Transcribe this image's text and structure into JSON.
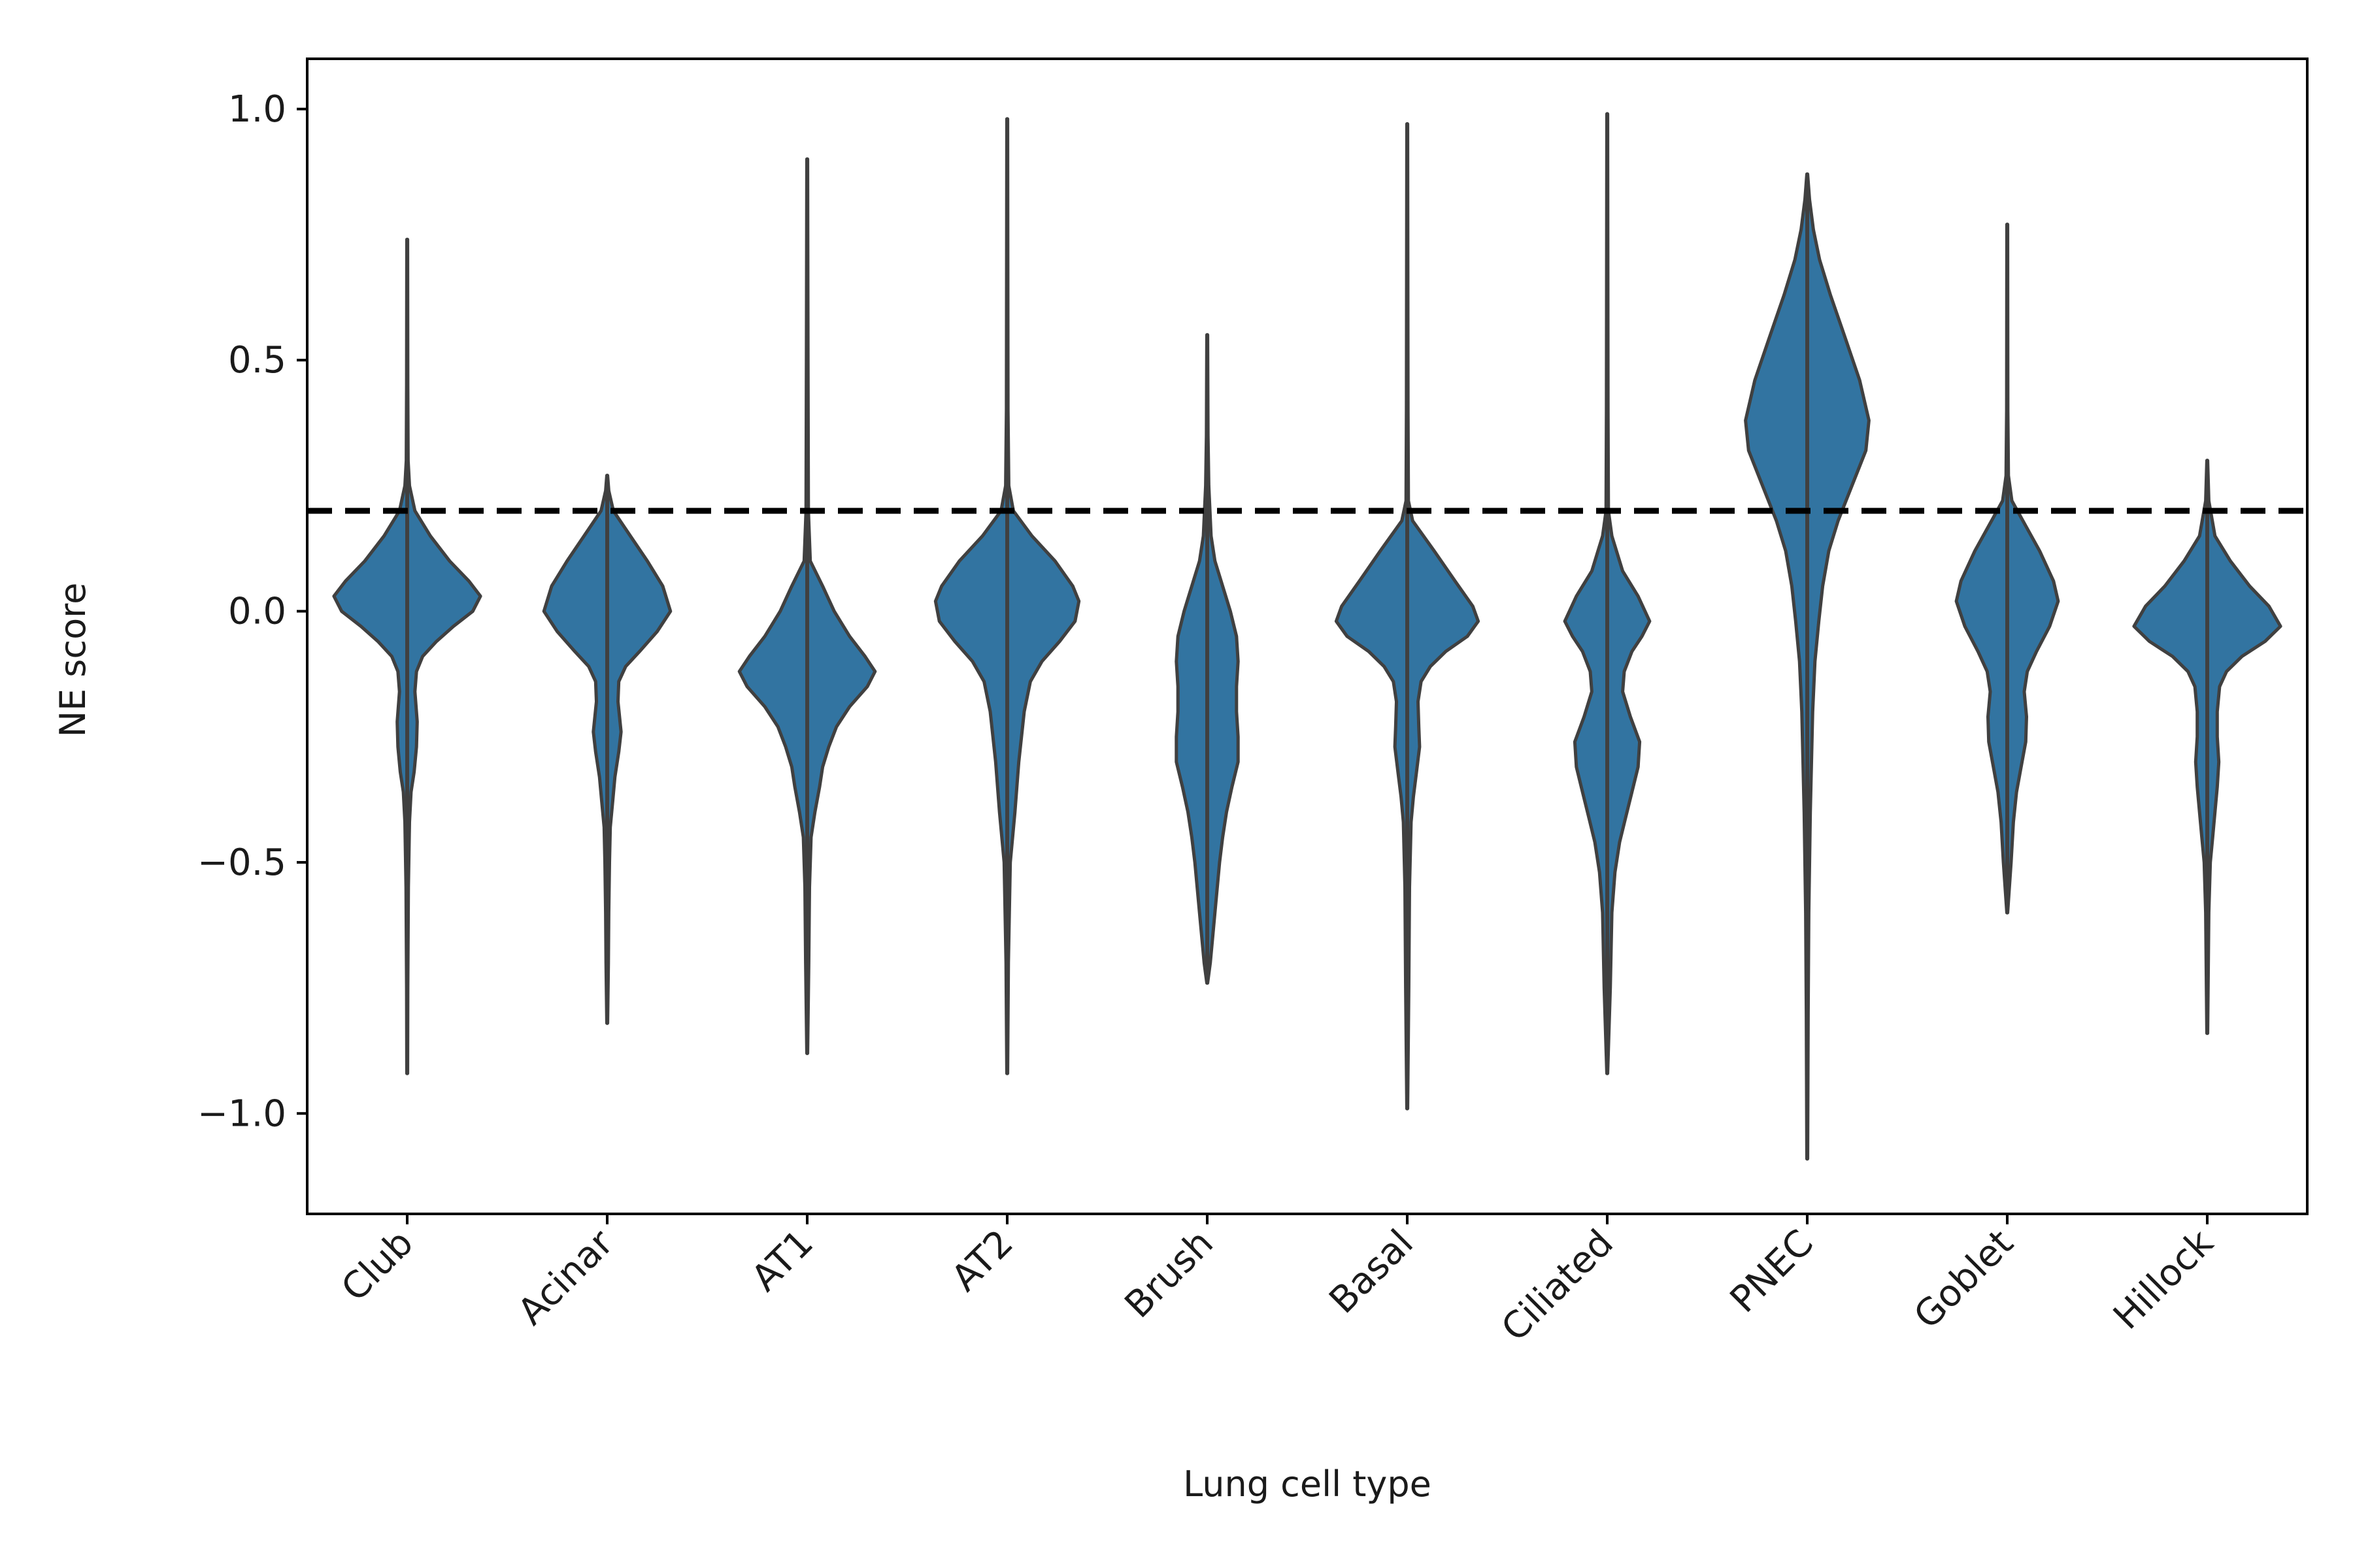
{
  "chart_data": {
    "type": "violin",
    "xlabel": "Lung cell type",
    "ylabel": "NE score",
    "ylim": [
      -1.2,
      1.1
    ],
    "yticks": [
      1.0,
      0.5,
      0.0,
      -0.5,
      -1.0
    ],
    "ytick_labels": [
      "1.0",
      "0.5",
      "0.0",
      "−0.5",
      "−1.0"
    ],
    "threshold": 0.2,
    "fill_color": "#3274a1",
    "edge_color": "#404040",
    "threshold_color": "#000000",
    "categories": [
      "Club",
      "Acinar",
      "AT1",
      "AT2",
      "Brush",
      "Basal",
      "Ciliated",
      "PNEC",
      "Goblet",
      "Hillock"
    ],
    "violins": [
      {
        "name": "Club",
        "min": -0.92,
        "max": 0.74,
        "profile": [
          [
            0.74,
            0.005
          ],
          [
            0.45,
            0.008
          ],
          [
            0.3,
            0.012
          ],
          [
            0.25,
            0.03
          ],
          [
            0.2,
            0.1
          ],
          [
            0.15,
            0.3
          ],
          [
            0.1,
            0.55
          ],
          [
            0.06,
            0.8
          ],
          [
            0.03,
            0.95
          ],
          [
            0.0,
            0.85
          ],
          [
            -0.03,
            0.6
          ],
          [
            -0.06,
            0.38
          ],
          [
            -0.09,
            0.2
          ],
          [
            -0.12,
            0.12
          ],
          [
            -0.16,
            0.1
          ],
          [
            -0.22,
            0.13
          ],
          [
            -0.27,
            0.12
          ],
          [
            -0.32,
            0.09
          ],
          [
            -0.36,
            0.05
          ],
          [
            -0.42,
            0.03
          ],
          [
            -0.55,
            0.015
          ],
          [
            -0.75,
            0.008
          ],
          [
            -0.92,
            0.005
          ]
        ]
      },
      {
        "name": "Acinar",
        "min": -0.82,
        "max": 0.27,
        "profile": [
          [
            0.27,
            0.005
          ],
          [
            0.24,
            0.02
          ],
          [
            0.2,
            0.08
          ],
          [
            0.15,
            0.3
          ],
          [
            0.1,
            0.52
          ],
          [
            0.05,
            0.72
          ],
          [
            0.0,
            0.82
          ],
          [
            -0.04,
            0.65
          ],
          [
            -0.08,
            0.42
          ],
          [
            -0.11,
            0.24
          ],
          [
            -0.14,
            0.15
          ],
          [
            -0.18,
            0.14
          ],
          [
            -0.24,
            0.18
          ],
          [
            -0.28,
            0.15
          ],
          [
            -0.33,
            0.1
          ],
          [
            -0.38,
            0.07
          ],
          [
            -0.43,
            0.04
          ],
          [
            -0.5,
            0.03
          ],
          [
            -0.6,
            0.02
          ],
          [
            -0.7,
            0.015
          ],
          [
            -0.82,
            0.005
          ]
        ]
      },
      {
        "name": "AT1",
        "min": -0.88,
        "max": 0.9,
        "profile": [
          [
            0.9,
            0.005
          ],
          [
            0.5,
            0.01
          ],
          [
            0.2,
            0.015
          ],
          [
            0.1,
            0.04
          ],
          [
            0.05,
            0.2
          ],
          [
            0.0,
            0.35
          ],
          [
            -0.05,
            0.55
          ],
          [
            -0.09,
            0.75
          ],
          [
            -0.12,
            0.88
          ],
          [
            -0.15,
            0.78
          ],
          [
            -0.19,
            0.55
          ],
          [
            -0.23,
            0.38
          ],
          [
            -0.27,
            0.28
          ],
          [
            -0.31,
            0.2
          ],
          [
            -0.35,
            0.16
          ],
          [
            -0.4,
            0.1
          ],
          [
            -0.45,
            0.05
          ],
          [
            -0.55,
            0.03
          ],
          [
            -0.7,
            0.02
          ],
          [
            -0.88,
            0.005
          ]
        ]
      },
      {
        "name": "AT2",
        "min": -0.92,
        "max": 0.98,
        "profile": [
          [
            0.98,
            0.005
          ],
          [
            0.4,
            0.01
          ],
          [
            0.25,
            0.02
          ],
          [
            0.2,
            0.08
          ],
          [
            0.15,
            0.32
          ],
          [
            0.1,
            0.62
          ],
          [
            0.05,
            0.85
          ],
          [
            0.02,
            0.93
          ],
          [
            -0.02,
            0.88
          ],
          [
            -0.06,
            0.68
          ],
          [
            -0.1,
            0.45
          ],
          [
            -0.14,
            0.3
          ],
          [
            -0.2,
            0.22
          ],
          [
            -0.3,
            0.15
          ],
          [
            -0.4,
            0.1
          ],
          [
            -0.5,
            0.04
          ],
          [
            -0.7,
            0.015
          ],
          [
            -0.92,
            0.005
          ]
        ]
      },
      {
        "name": "Brush",
        "min": -0.74,
        "max": 0.55,
        "profile": [
          [
            0.55,
            0.005
          ],
          [
            0.35,
            0.01
          ],
          [
            0.25,
            0.02
          ],
          [
            0.15,
            0.05
          ],
          [
            0.1,
            0.1
          ],
          [
            0.05,
            0.2
          ],
          [
            0.0,
            0.3
          ],
          [
            -0.05,
            0.38
          ],
          [
            -0.1,
            0.4
          ],
          [
            -0.15,
            0.38
          ],
          [
            -0.2,
            0.38
          ],
          [
            -0.25,
            0.4
          ],
          [
            -0.3,
            0.4
          ],
          [
            -0.35,
            0.32
          ],
          [
            -0.4,
            0.25
          ],
          [
            -0.45,
            0.2
          ],
          [
            -0.5,
            0.16
          ],
          [
            -0.6,
            0.1
          ],
          [
            -0.7,
            0.04
          ],
          [
            -0.74,
            0.005
          ]
        ]
      },
      {
        "name": "Basal",
        "min": -0.99,
        "max": 0.97,
        "profile": [
          [
            0.97,
            0.005
          ],
          [
            0.4,
            0.01
          ],
          [
            0.22,
            0.015
          ],
          [
            0.18,
            0.07
          ],
          [
            0.12,
            0.35
          ],
          [
            0.06,
            0.62
          ],
          [
            0.01,
            0.85
          ],
          [
            -0.02,
            0.92
          ],
          [
            -0.05,
            0.78
          ],
          [
            -0.08,
            0.5
          ],
          [
            -0.11,
            0.3
          ],
          [
            -0.14,
            0.18
          ],
          [
            -0.18,
            0.14
          ],
          [
            -0.23,
            0.15
          ],
          [
            -0.27,
            0.16
          ],
          [
            -0.32,
            0.12
          ],
          [
            -0.37,
            0.08
          ],
          [
            -0.42,
            0.05
          ],
          [
            -0.55,
            0.03
          ],
          [
            -0.75,
            0.02
          ],
          [
            -0.99,
            0.005
          ]
        ]
      },
      {
        "name": "Ciliated",
        "min": -0.92,
        "max": 0.99,
        "profile": [
          [
            0.99,
            0.005
          ],
          [
            0.4,
            0.01
          ],
          [
            0.2,
            0.015
          ],
          [
            0.15,
            0.06
          ],
          [
            0.08,
            0.2
          ],
          [
            0.03,
            0.4
          ],
          [
            -0.02,
            0.55
          ],
          [
            -0.05,
            0.45
          ],
          [
            -0.08,
            0.32
          ],
          [
            -0.12,
            0.22
          ],
          [
            -0.16,
            0.2
          ],
          [
            -0.21,
            0.3
          ],
          [
            -0.26,
            0.42
          ],
          [
            -0.31,
            0.4
          ],
          [
            -0.36,
            0.32
          ],
          [
            -0.41,
            0.24
          ],
          [
            -0.46,
            0.16
          ],
          [
            -0.52,
            0.1
          ],
          [
            -0.6,
            0.06
          ],
          [
            -0.75,
            0.04
          ],
          [
            -0.92,
            0.005
          ]
        ]
      },
      {
        "name": "PNEC",
        "min": -1.09,
        "max": 0.87,
        "profile": [
          [
            0.87,
            0.005
          ],
          [
            0.82,
            0.03
          ],
          [
            0.76,
            0.08
          ],
          [
            0.7,
            0.16
          ],
          [
            0.63,
            0.3
          ],
          [
            0.55,
            0.48
          ],
          [
            0.46,
            0.68
          ],
          [
            0.38,
            0.8
          ],
          [
            0.32,
            0.76
          ],
          [
            0.25,
            0.58
          ],
          [
            0.18,
            0.4
          ],
          [
            0.12,
            0.28
          ],
          [
            0.05,
            0.2
          ],
          [
            -0.02,
            0.15
          ],
          [
            -0.1,
            0.1
          ],
          [
            -0.2,
            0.07
          ],
          [
            -0.4,
            0.04
          ],
          [
            -0.6,
            0.02
          ],
          [
            -0.8,
            0.012
          ],
          [
            -1.09,
            0.005
          ]
        ]
      },
      {
        "name": "Goblet",
        "min": -0.6,
        "max": 0.77,
        "profile": [
          [
            0.77,
            0.005
          ],
          [
            0.4,
            0.008
          ],
          [
            0.27,
            0.015
          ],
          [
            0.22,
            0.06
          ],
          [
            0.17,
            0.24
          ],
          [
            0.12,
            0.42
          ],
          [
            0.06,
            0.6
          ],
          [
            0.02,
            0.66
          ],
          [
            -0.03,
            0.55
          ],
          [
            -0.08,
            0.38
          ],
          [
            -0.12,
            0.26
          ],
          [
            -0.16,
            0.22
          ],
          [
            -0.21,
            0.25
          ],
          [
            -0.26,
            0.24
          ],
          [
            -0.31,
            0.18
          ],
          [
            -0.36,
            0.12
          ],
          [
            -0.42,
            0.08
          ],
          [
            -0.5,
            0.05
          ],
          [
            -0.6,
            0.005
          ]
        ]
      },
      {
        "name": "Hillock",
        "min": -0.84,
        "max": 0.3,
        "profile": [
          [
            0.3,
            0.005
          ],
          [
            0.22,
            0.02
          ],
          [
            0.15,
            0.1
          ],
          [
            0.1,
            0.3
          ],
          [
            0.05,
            0.55
          ],
          [
            0.01,
            0.8
          ],
          [
            -0.03,
            0.95
          ],
          [
            -0.06,
            0.75
          ],
          [
            -0.09,
            0.45
          ],
          [
            -0.12,
            0.25
          ],
          [
            -0.15,
            0.16
          ],
          [
            -0.2,
            0.13
          ],
          [
            -0.25,
            0.13
          ],
          [
            -0.3,
            0.15
          ],
          [
            -0.35,
            0.13
          ],
          [
            -0.4,
            0.1
          ],
          [
            -0.45,
            0.07
          ],
          [
            -0.5,
            0.04
          ],
          [
            -0.6,
            0.02
          ],
          [
            -0.84,
            0.005
          ]
        ]
      }
    ]
  }
}
